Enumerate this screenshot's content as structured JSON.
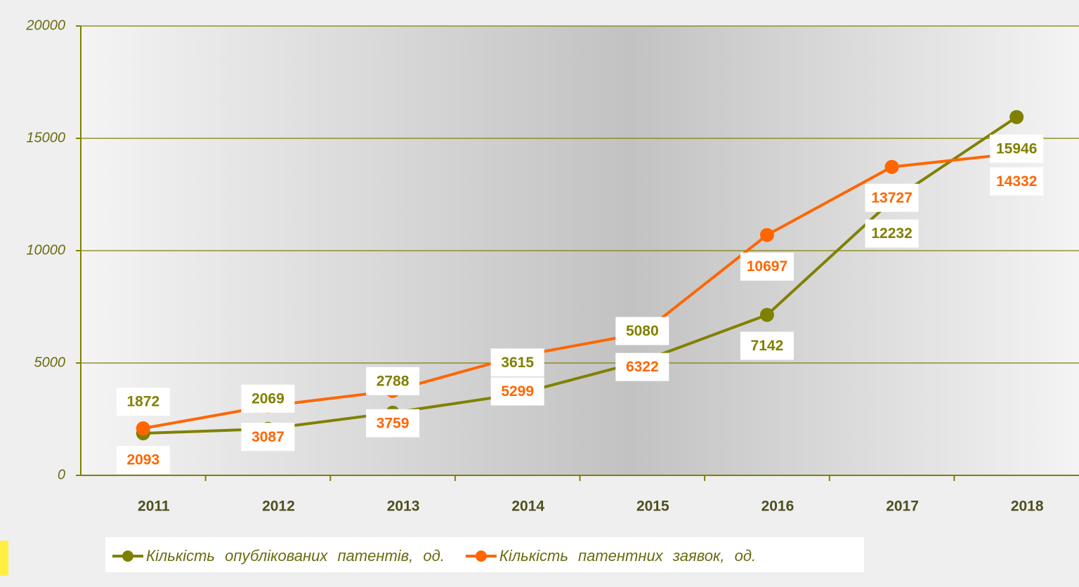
{
  "chart_data": {
    "type": "line",
    "categories": [
      "2011",
      "2012",
      "2013",
      "2014",
      "2015",
      "2016",
      "2017",
      "2018"
    ],
    "series": [
      {
        "name": "Кількість опублікованих патентів, од.",
        "color": "#808000",
        "values": [
          1872,
          2069,
          2788,
          3615,
          5080,
          7142,
          12232,
          15946
        ]
      },
      {
        "name": "Кількість патентних заявок, од.",
        "color": "#ff6600",
        "values": [
          2093,
          3087,
          3759,
          5299,
          6322,
          10697,
          13727,
          14332
        ]
      }
    ],
    "ylim": [
      0,
      20000
    ],
    "yticks": [
      0,
      5000,
      10000,
      15000,
      20000
    ],
    "grid": true,
    "legend": "bottom"
  }
}
